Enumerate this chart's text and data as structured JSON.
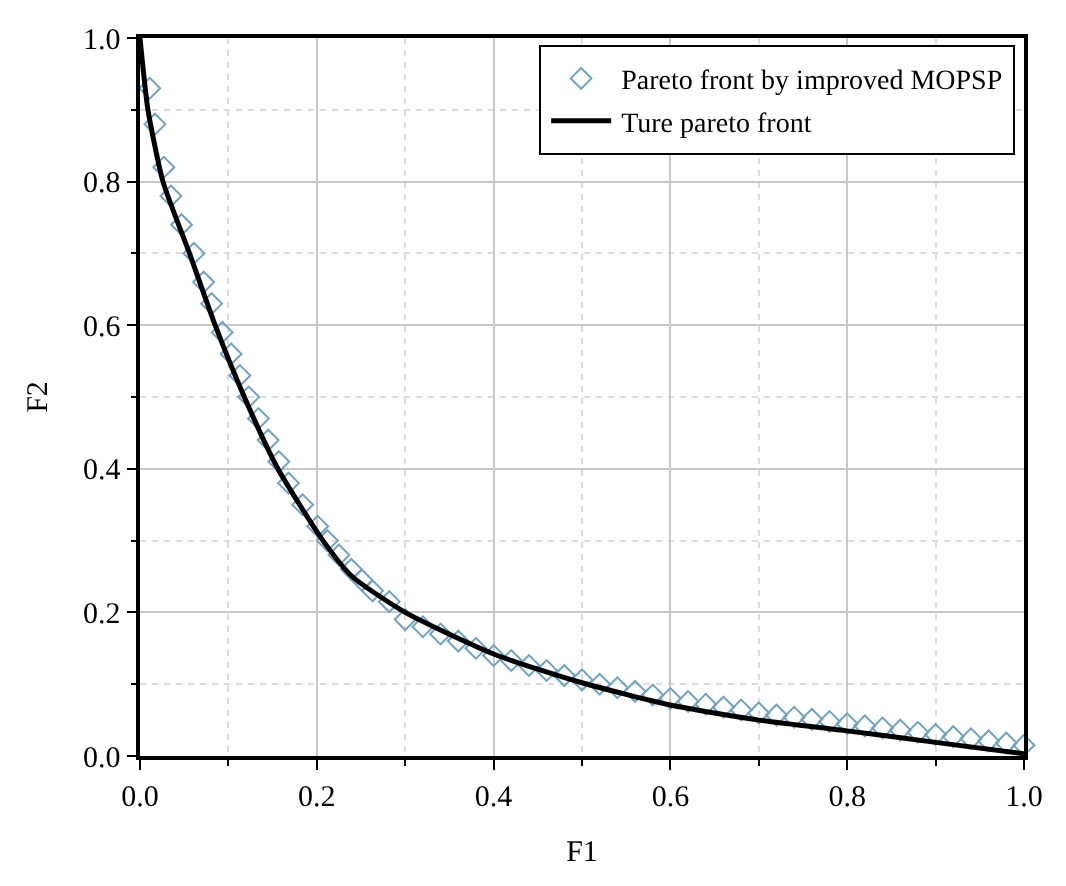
{
  "chart_data": {
    "type": "scatter",
    "xlabel": "F1",
    "ylabel": "F2",
    "xlim": [
      0,
      1
    ],
    "ylim": [
      0,
      1
    ],
    "xticks": [
      {
        "value": 0,
        "label": "0.0"
      },
      {
        "value": 0.2,
        "label": "0.2"
      },
      {
        "value": 0.4,
        "label": "0.4"
      },
      {
        "value": 0.6,
        "label": "0.6"
      },
      {
        "value": 0.8,
        "label": "0.8"
      },
      {
        "value": 1,
        "label": "1.0"
      }
    ],
    "yticks": [
      {
        "value": 0,
        "label": "0.0"
      },
      {
        "value": 0.2,
        "label": "0.2"
      },
      {
        "value": 0.4,
        "label": "0.4"
      },
      {
        "value": 0.6,
        "label": "0.6"
      },
      {
        "value": 0.8,
        "label": "0.8"
      },
      {
        "value": 1,
        "label": "1.0"
      }
    ],
    "grid": true,
    "legend": "top right",
    "series": [
      {
        "name": "Pareto front by improved MOPSP",
        "type": "scatter",
        "marker": "diamond",
        "color": "#6fa3c0",
        "x": [
          0.011,
          0.017,
          0.027,
          0.035,
          0.047,
          0.061,
          0.072,
          0.081,
          0.093,
          0.103,
          0.113,
          0.123,
          0.134,
          0.145,
          0.157,
          0.168,
          0.184,
          0.201,
          0.212,
          0.225,
          0.239,
          0.251,
          0.263,
          0.282,
          0.3,
          0.32,
          0.34,
          0.36,
          0.38,
          0.4,
          0.42,
          0.44,
          0.46,
          0.48,
          0.5,
          0.52,
          0.54,
          0.56,
          0.58,
          0.6,
          0.62,
          0.64,
          0.66,
          0.68,
          0.7,
          0.72,
          0.74,
          0.76,
          0.78,
          0.8,
          0.82,
          0.84,
          0.86,
          0.88,
          0.9,
          0.92,
          0.94,
          0.96,
          0.98,
          1.0
        ],
        "values": [
          0.93,
          0.88,
          0.82,
          0.78,
          0.74,
          0.7,
          0.66,
          0.63,
          0.59,
          0.56,
          0.53,
          0.5,
          0.47,
          0.44,
          0.41,
          0.38,
          0.35,
          0.32,
          0.3,
          0.28,
          0.26,
          0.245,
          0.23,
          0.215,
          0.19,
          0.18,
          0.17,
          0.16,
          0.15,
          0.14,
          0.133,
          0.126,
          0.119,
          0.112,
          0.106,
          0.1,
          0.095,
          0.09,
          0.085,
          0.08,
          0.076,
          0.072,
          0.068,
          0.064,
          0.06,
          0.057,
          0.054,
          0.051,
          0.048,
          0.045,
          0.042,
          0.039,
          0.036,
          0.033,
          0.03,
          0.027,
          0.024,
          0.021,
          0.018,
          0.015
        ]
      },
      {
        "name": "Ture pareto front",
        "type": "line",
        "marker": "none",
        "line_style": "solid",
        "color": "#000000",
        "x": [
          0,
          0.009,
          0.026,
          0.056,
          0.085,
          0.118,
          0.156,
          0.207,
          0.24,
          0.3,
          0.4,
          0.5,
          0.6,
          0.7,
          0.8,
          0.9,
          1.0
        ],
        "values": [
          1,
          0.9,
          0.8,
          0.7,
          0.6,
          0.5,
          0.4,
          0.3,
          0.25,
          0.2,
          0.142,
          0.102,
          0.071,
          0.05,
          0.035,
          0.019,
          0.003
        ]
      }
    ]
  }
}
